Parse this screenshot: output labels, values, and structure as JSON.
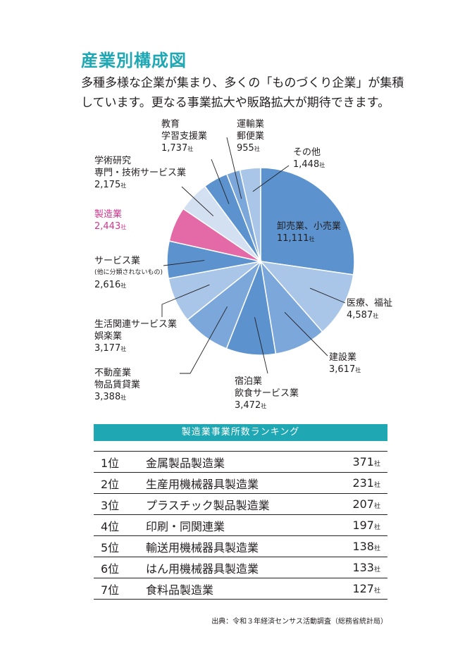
{
  "page": {
    "title": "産業別構成図",
    "intro_lines": [
      "多種多様な企業が集まり、多くの「ものづくり企業」が集積",
      "しています。更なる事業拡大や販路拡大が期待できます。"
    ]
  },
  "colors": {
    "accent": "#1fa7b3",
    "highlight": "#d6338d",
    "pie_blue_dark": "#5c93cf",
    "pie_blue_light": "#a9c6e9",
    "pie_pale": "#d3e0f1",
    "pie_pink": "#e36aa6"
  },
  "chart_data": {
    "type": "pie",
    "unit": "社",
    "slices": [
      {
        "label": "卸売業、小売業",
        "value": 11111,
        "value_text": "11,111",
        "color": "#5c93cf"
      },
      {
        "label": "医療、福祉",
        "value": 4587,
        "value_text": "4,587",
        "color": "#a9c6e9"
      },
      {
        "label": "建設業",
        "value": 3617,
        "value_text": "3,617",
        "color": "#7ca7db"
      },
      {
        "label": "宿泊業 飲食サービス業",
        "value": 3472,
        "value_text": "3,472",
        "color": "#5c93cf"
      },
      {
        "label": "不動産業 物品賃貸業",
        "value": 3388,
        "value_text": "3,388",
        "color": "#7ca7db"
      },
      {
        "label": "生活関連サービス業 娯楽業",
        "value": 3177,
        "value_text": "3,177",
        "color": "#a9c6e9"
      },
      {
        "label": "サービス業",
        "note": "(他に分類されないもの)",
        "value": 2616,
        "value_text": "2,616",
        "color": "#5c93cf"
      },
      {
        "label": "製造業",
        "value": 2443,
        "value_text": "2,443",
        "color": "#e36aa6",
        "highlight": true
      },
      {
        "label": "学術研究 専門・技術サービス業",
        "value": 2175,
        "value_text": "2,175",
        "color": "#d3e0f1"
      },
      {
        "label": "教育 学習支援業",
        "value": 1737,
        "value_text": "1,737",
        "color": "#5c93cf"
      },
      {
        "label": "運輸業 郵便業",
        "value": 955,
        "value_text": "955",
        "color": "#7ca7db"
      },
      {
        "label": "その他",
        "value": 1448,
        "value_text": "1,448",
        "color": "#a9c6e9"
      }
    ],
    "labels": [
      {
        "line1": "卸売業、小売業",
        "line2": "",
        "note": "",
        "value": "11,111"
      },
      {
        "line1": "医療、福祉",
        "line2": "",
        "note": "",
        "value": "4,587"
      },
      {
        "line1": "建設業",
        "line2": "",
        "note": "",
        "value": "3,617"
      },
      {
        "line1": "宿泊業",
        "line2": "飲食サービス業",
        "note": "",
        "value": "3,472"
      },
      {
        "line1": "不動産業",
        "line2": "物品賃貸業",
        "note": "",
        "value": "3,388"
      },
      {
        "line1": "生活関連サービス業",
        "line2": "娯楽業",
        "note": "",
        "value": "3,177"
      },
      {
        "line1": "サービス業",
        "line2": "",
        "note": "(他に分類されないもの)",
        "value": "2,616"
      },
      {
        "line1": "製造業",
        "line2": "",
        "note": "",
        "value": "2,443"
      },
      {
        "line1": "学術研究",
        "line2": "専門・技術サービス業",
        "note": "",
        "value": "2,175"
      },
      {
        "line1": "教育",
        "line2": "学習支援業",
        "note": "",
        "value": "1,737"
      },
      {
        "line1": "運輸業",
        "line2": "郵便業",
        "note": "",
        "value": "955"
      },
      {
        "line1": "その他",
        "line2": "",
        "note": "",
        "value": "1,448"
      }
    ]
  },
  "ranking": {
    "title": "製造業事業所数ランキング",
    "unit": "社",
    "rows": [
      {
        "rank": "1位",
        "name": "金属製品製造業",
        "count": "371"
      },
      {
        "rank": "2位",
        "name": "生産用機械器具製造業",
        "count": "231"
      },
      {
        "rank": "3位",
        "name": "プラスチック製品製造業",
        "count": "207"
      },
      {
        "rank": "4位",
        "name": "印刷・同関連業",
        "count": "197"
      },
      {
        "rank": "5位",
        "name": "輸送用機械器具製造業",
        "count": "138"
      },
      {
        "rank": "6位",
        "name": "はん用機械器具製造業",
        "count": "133"
      },
      {
        "rank": "7位",
        "name": "食料品製造業",
        "count": "127"
      }
    ]
  },
  "source": "出典：令和３年経済センサス活動調査（総務省統計局）"
}
